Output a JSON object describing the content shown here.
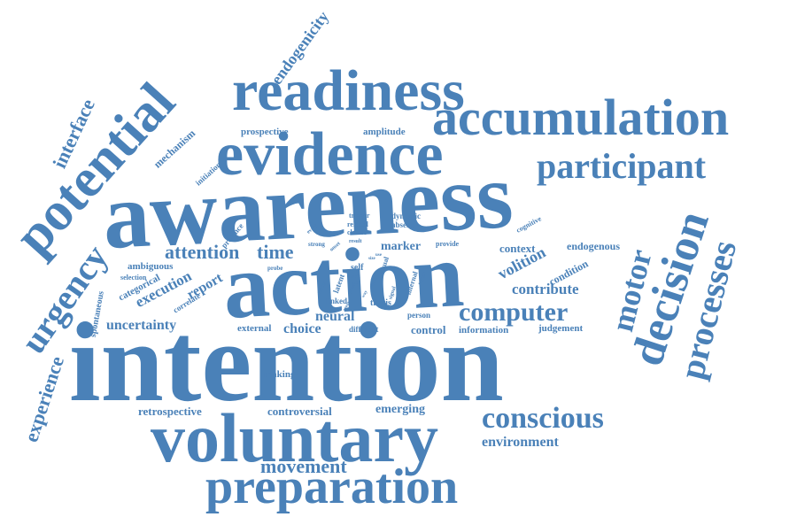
{
  "palette": {
    "word_color": "#4a81b8",
    "background": "#ffffff"
  },
  "words": {
    "intention": "intention",
    "awareness": "awareness",
    "action": "action",
    "voluntary": "voluntary",
    "evidence": "evidence",
    "readiness": "readiness",
    "accumulation": "accumulation",
    "preparation": "preparation",
    "potential": "potential",
    "decision": "decision",
    "participant": "participant",
    "processes": "processes",
    "conscious": "conscious",
    "computer": "computer",
    "motor": "motor",
    "urgency": "urgency",
    "experience": "experience",
    "movement": "movement",
    "attention": "attention",
    "time": "time",
    "interface": "interface",
    "endogenicity": "endogenicity",
    "environment": "environment",
    "uncertainty": "uncertainty",
    "volition": "volition",
    "contribute": "contribute",
    "execution": "execution",
    "report": "report",
    "neural": "neural",
    "choice": "choice",
    "controversial": "controversial",
    "retrospective": "retrospective",
    "emerging": "emerging",
    "marker": "marker",
    "context": "context",
    "endogenous": "endogenous",
    "condition": "condition",
    "judgement": "judgement",
    "information": "information",
    "control": "control",
    "making": "making",
    "external": "external",
    "different": "different",
    "person": "person",
    "prospective": "prospective",
    "amplitude": "amplitude",
    "mechanism": "mechanism",
    "initiation": "initiation",
    "presence": "presence",
    "ambiguous": "ambiguous",
    "selection": "selection",
    "categorical": "categorical",
    "correlate": "correlate",
    "spontaneous": "spontaneous",
    "cognitive": "cognitive",
    "dynamic": "dynamic",
    "absence": "absence",
    "trigger": "trigger",
    "related": "related",
    "classic": "classic",
    "strong": "strong",
    "event": "event",
    "probe": "probe",
    "result": "result",
    "provide": "provide",
    "thesis": "thesis",
    "self": "self",
    "task": "task",
    "latent": "latent",
    "linked": "linked",
    "internal": "internal",
    "factor": "factor",
    "visual": "visual",
    "signal": "signal",
    "extent": "extent",
    "onset": "onset",
    "size": "size",
    "act": "act",
    "use": "use",
    "way": "way",
    "agent": "agent",
    "basis": "basis",
    "given": "given"
  }
}
